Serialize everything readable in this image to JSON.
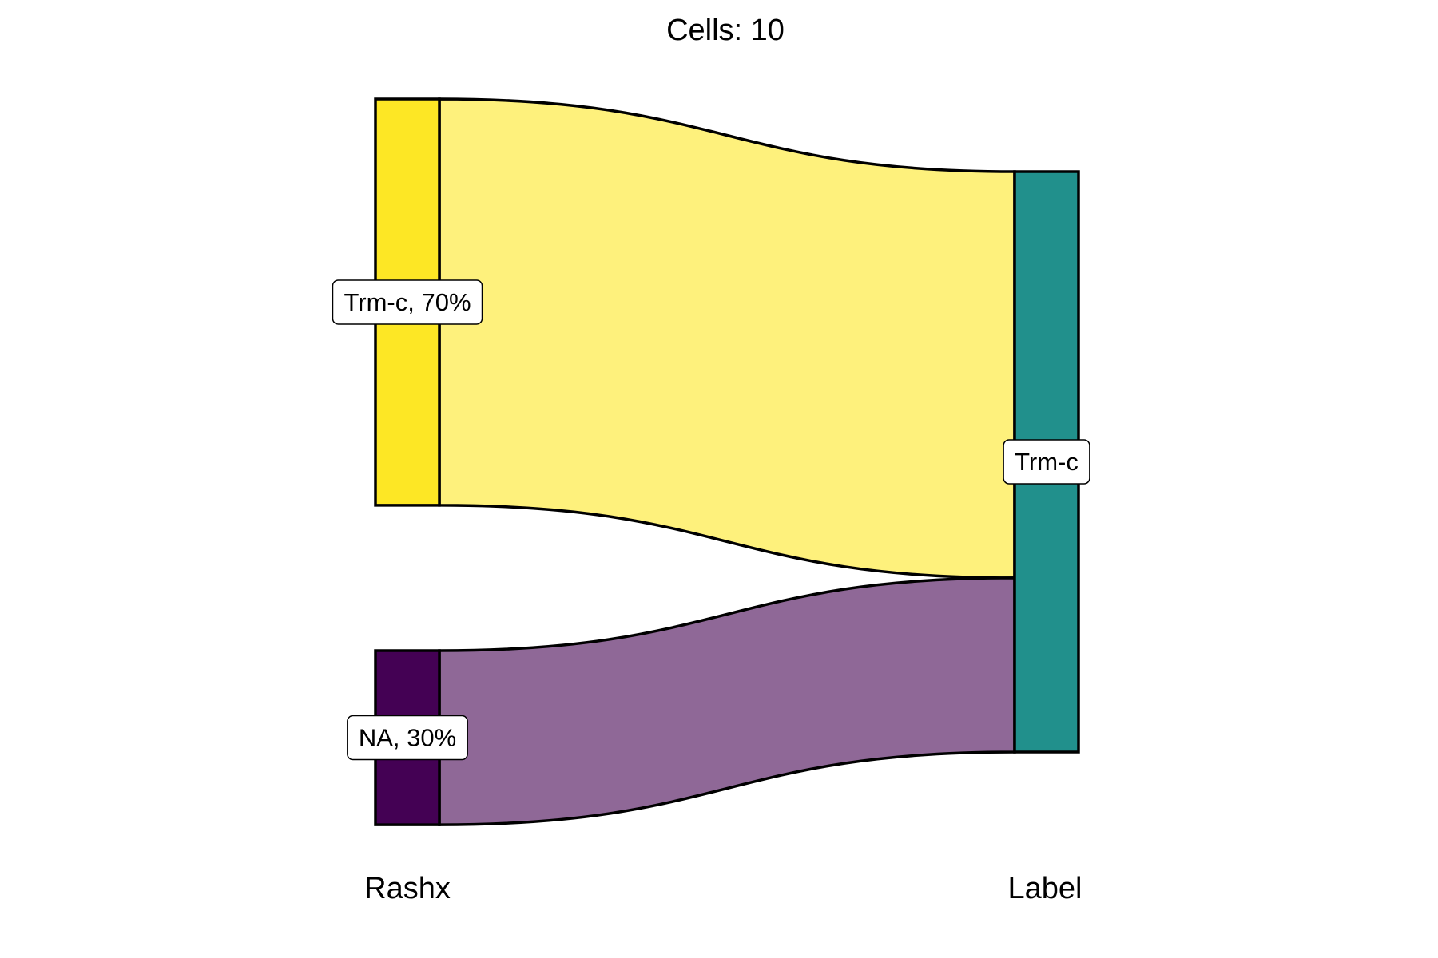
{
  "chart_data": {
    "type": "sankey",
    "title": "Cells:  10",
    "axes": [
      {
        "name": "Rashx",
        "nodes": [
          {
            "name": "Trm-c",
            "label": "Trm-c, 70%",
            "value": 7,
            "color": "#FDE725"
          },
          {
            "name": "NA",
            "label": "NA, 30%",
            "value": 3,
            "color": "#440154"
          }
        ]
      },
      {
        "name": "Label",
        "nodes": [
          {
            "name": "Trm-c",
            "label": "Trm-c",
            "value": 10,
            "color": "#21908C"
          }
        ]
      }
    ],
    "flows": [
      {
        "from": "Trm-c",
        "to": "Trm-c",
        "value": 7,
        "color": "#FEF17C"
      },
      {
        "from": "NA",
        "to": "Trm-c",
        "value": 3,
        "color": "#8F6897"
      }
    ]
  }
}
